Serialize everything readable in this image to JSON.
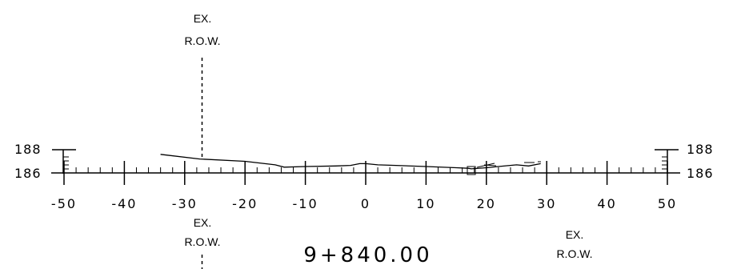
{
  "section": {
    "station": "9+840.00",
    "row_markers": [
      {
        "line1": "EX.",
        "line2": "R.O.W.",
        "offset": -27.5
      },
      {
        "line1": "EX.",
        "line2": "R.O.W.",
        "offset": -27.5
      },
      {
        "line1": "EX.",
        "line2": "R.O.W.",
        "offset": 36
      }
    ]
  },
  "chart_data": {
    "type": "line",
    "x_tick_labels": [
      "-50",
      "-40",
      "-30",
      "-20",
      "-10",
      "0",
      "10",
      "20",
      "30",
      "40",
      "50"
    ],
    "x_range": [
      -50,
      50
    ],
    "y_tick_labels": [
      "188",
      "186"
    ],
    "y_range": [
      186,
      188
    ],
    "ground_profile": {
      "x": [
        -34,
        -27.5,
        -20,
        -15,
        -13.5,
        -10,
        -5,
        -2.5,
        -1,
        0,
        2,
        5,
        10,
        15,
        17,
        17.5,
        20,
        22,
        25,
        27,
        29
      ],
      "y": [
        187.6,
        187.2,
        187.0,
        186.7,
        186.5,
        186.55,
        186.6,
        186.65,
        186.8,
        186.8,
        186.7,
        186.65,
        186.55,
        186.45,
        186.4,
        186.35,
        186.45,
        186.55,
        186.7,
        186.6,
        186.8
      ]
    },
    "grid": false
  },
  "colors": {
    "line": "#000000",
    "background": "#ffffff"
  }
}
